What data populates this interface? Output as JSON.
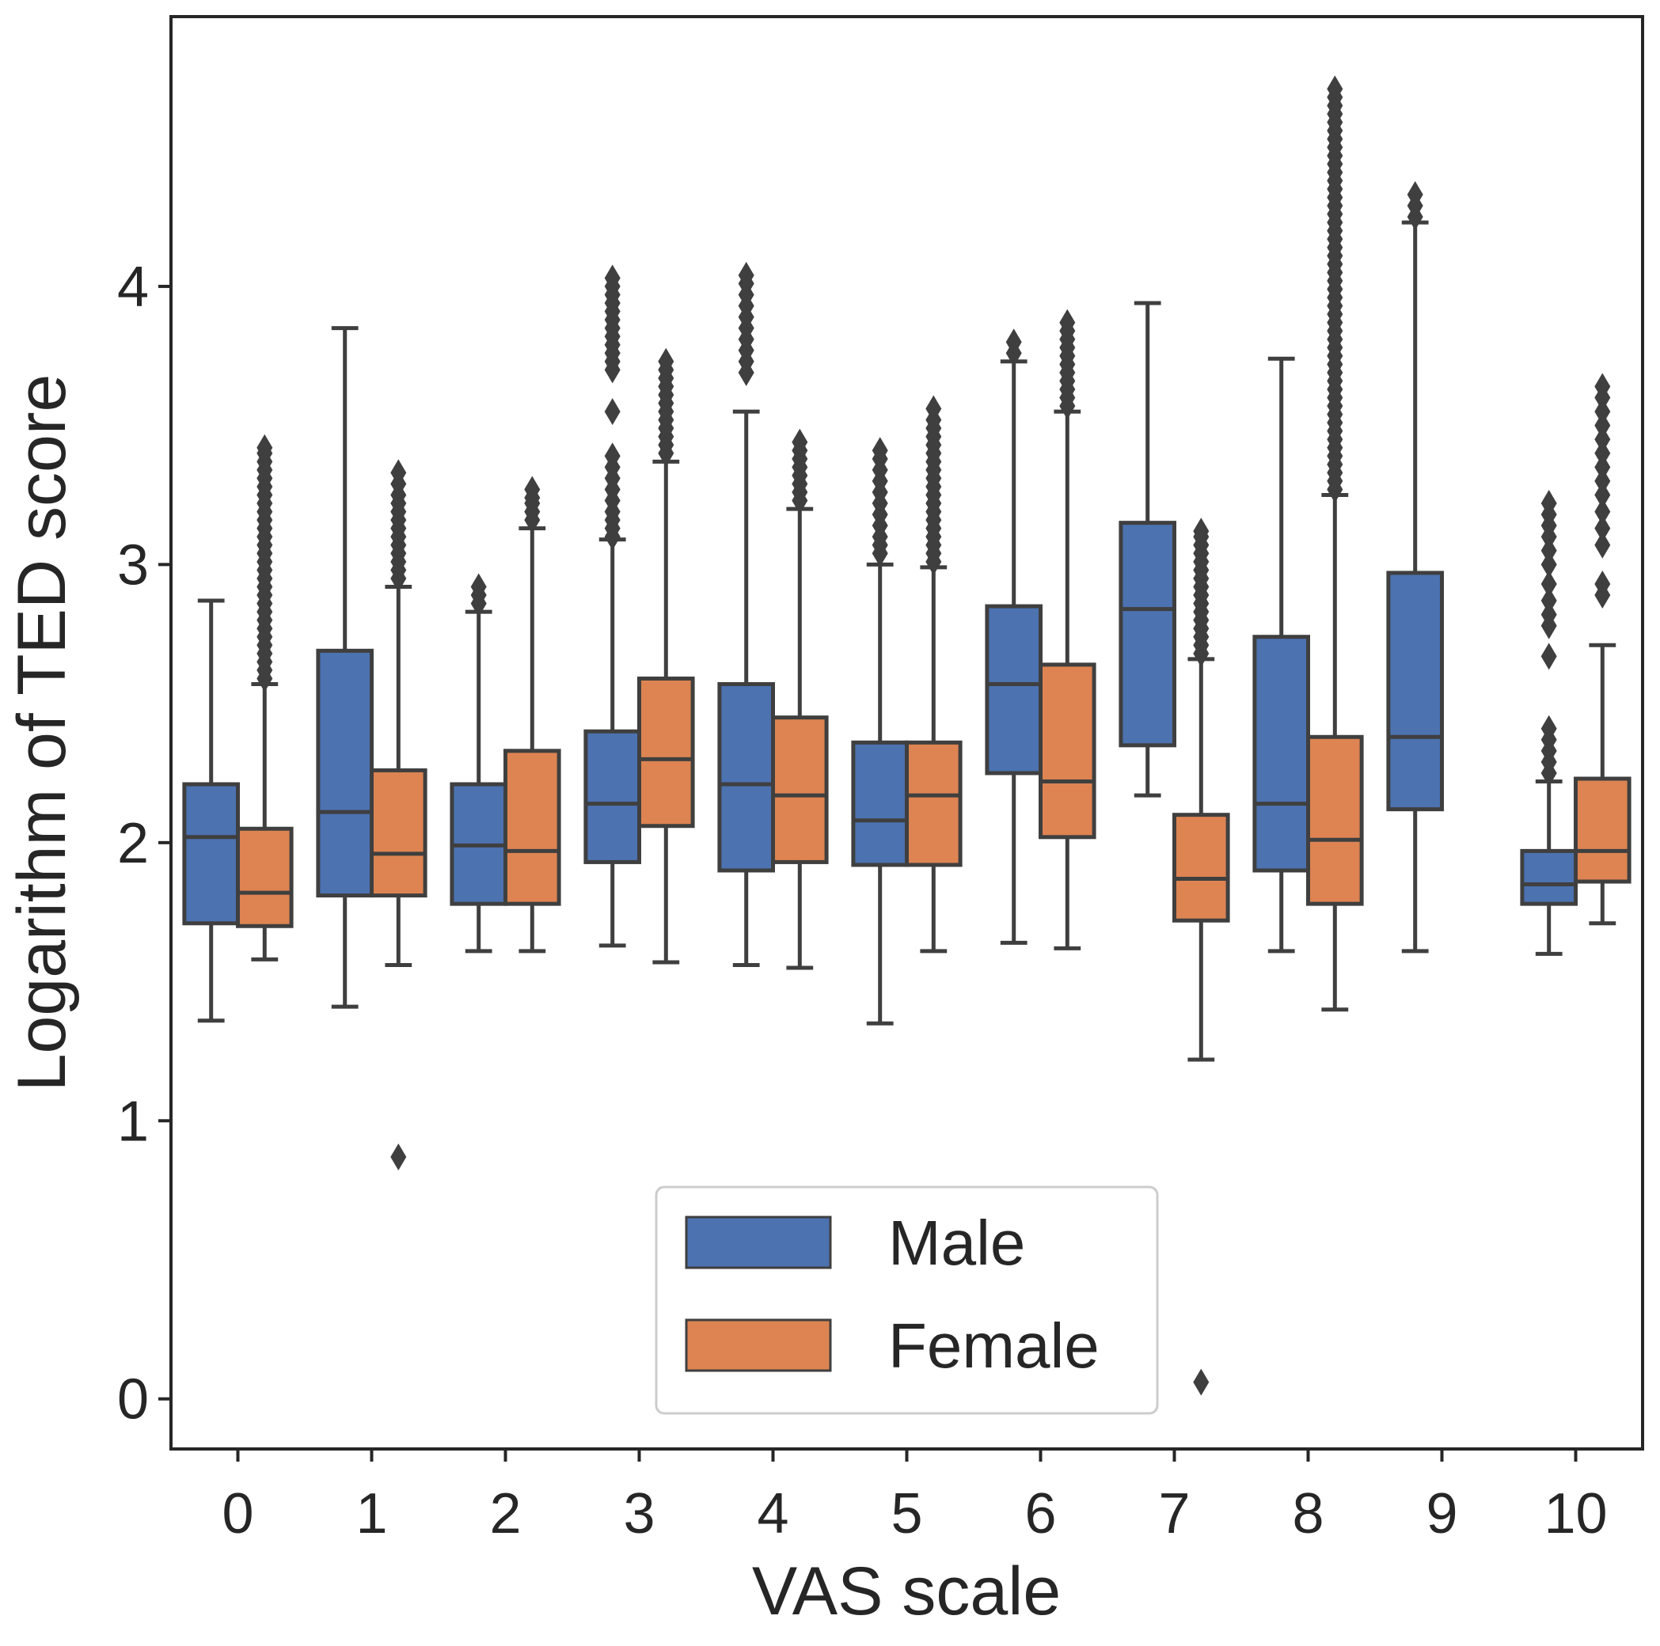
{
  "chart_data": {
    "type": "boxplot",
    "xlabel": "VAS scale",
    "ylabel": "Logarithm of TED score",
    "categories": [
      "0",
      "1",
      "2",
      "3",
      "4",
      "5",
      "6",
      "7",
      "8",
      "9",
      "10"
    ],
    "yticks": [
      {
        "value": 0,
        "label": "0"
      },
      {
        "value": 1,
        "label": "1"
      },
      {
        "value": 2,
        "label": "2"
      },
      {
        "value": 3,
        "label": "3"
      },
      {
        "value": 4,
        "label": "4"
      }
    ],
    "ylim": [
      -0.18,
      4.97
    ],
    "legend": {
      "position": "bottom-center"
    },
    "colors": {
      "Male": "#4c72b0",
      "Female": "#dd8452",
      "line": "#3f3f3f",
      "axis": "#262626"
    },
    "series": [
      {
        "name": "Male",
        "color": "#4c72b0",
        "boxes": [
          {
            "whislo": 1.36,
            "q1": 1.71,
            "med": 2.02,
            "q3": 2.21,
            "whishi": 2.87,
            "fliers": []
          },
          {
            "whislo": 1.41,
            "q1": 1.81,
            "med": 2.11,
            "q3": 2.69,
            "whishi": 3.85,
            "fliers": []
          },
          {
            "whislo": 1.61,
            "q1": 1.78,
            "med": 1.99,
            "q3": 2.21,
            "whishi": 2.83,
            "fliers": [
              2.86,
              2.89,
              2.92
            ]
          },
          {
            "whislo": 1.63,
            "q1": 1.93,
            "med": 2.14,
            "q3": 2.4,
            "whishi": 3.09,
            "fliers": [
              3.1,
              3.13,
              3.16,
              3.19,
              3.23,
              3.27,
              3.31,
              3.35,
              3.39,
              3.55,
              3.7,
              3.73,
              3.76,
              3.79,
              3.82,
              3.85,
              3.88,
              3.91,
              3.94,
              3.97,
              4.0,
              4.03
            ]
          },
          {
            "whislo": 1.56,
            "q1": 1.9,
            "med": 2.21,
            "q3": 2.57,
            "whishi": 3.55,
            "fliers": [
              3.69,
              3.73,
              3.77,
              3.81,
              3.85,
              3.89,
              3.93,
              3.97,
              4.01,
              4.04
            ]
          },
          {
            "whislo": 1.35,
            "q1": 1.92,
            "med": 2.08,
            "q3": 2.36,
            "whishi": 3.0,
            "fliers": [
              3.04,
              3.07,
              3.1,
              3.14,
              3.18,
              3.22,
              3.26,
              3.3,
              3.34,
              3.38,
              3.41
            ]
          },
          {
            "whislo": 1.64,
            "q1": 2.25,
            "med": 2.57,
            "q3": 2.85,
            "whishi": 3.73,
            "fliers": [
              3.76,
              3.8
            ]
          },
          {
            "whislo": 2.17,
            "q1": 2.35,
            "med": 2.84,
            "q3": 3.15,
            "whishi": 3.94,
            "fliers": []
          },
          {
            "whislo": 1.61,
            "q1": 1.9,
            "med": 2.14,
            "q3": 2.74,
            "whishi": 3.74,
            "fliers": []
          },
          {
            "whislo": 1.61,
            "q1": 2.12,
            "med": 2.38,
            "q3": 2.97,
            "whishi": 4.23,
            "fliers": [
              4.25,
              4.29,
              4.33
            ]
          },
          {
            "whislo": 1.6,
            "q1": 1.78,
            "med": 1.85,
            "q3": 1.97,
            "whishi": 2.22,
            "fliers": [
              2.25,
              2.29,
              2.33,
              2.37,
              2.41,
              2.67,
              2.78,
              2.82,
              2.87,
              2.93,
              3.0,
              3.05,
              3.1,
              3.14,
              3.18,
              3.22
            ]
          }
        ]
      },
      {
        "name": "Female",
        "color": "#dd8452",
        "boxes": [
          {
            "whislo": 1.58,
            "q1": 1.7,
            "med": 1.82,
            "q3": 2.05,
            "whishi": 2.57,
            "fliers": [
              2.59,
              2.62,
              2.65,
              2.68,
              2.71,
              2.74,
              2.77,
              2.8,
              2.83,
              2.86,
              2.89,
              2.92,
              2.95,
              2.98,
              3.01,
              3.04,
              3.07,
              3.1,
              3.13,
              3.16,
              3.19,
              3.22,
              3.25,
              3.28,
              3.31,
              3.34,
              3.37,
              3.4,
              3.42
            ]
          },
          {
            "whislo": 1.56,
            "q1": 1.81,
            "med": 1.96,
            "q3": 2.26,
            "whishi": 2.92,
            "fliers": [
              0.87,
              2.95,
              2.98,
              3.01,
              3.04,
              3.07,
              3.1,
              3.13,
              3.16,
              3.19,
              3.22,
              3.25,
              3.29,
              3.33
            ]
          },
          {
            "whislo": 1.61,
            "q1": 1.78,
            "med": 1.97,
            "q3": 2.33,
            "whishi": 3.13,
            "fliers": [
              3.16,
              3.19,
              3.22,
              3.24,
              3.27
            ]
          },
          {
            "whislo": 1.57,
            "q1": 2.06,
            "med": 2.3,
            "q3": 2.59,
            "whishi": 3.37,
            "fliers": [
              3.4,
              3.43,
              3.46,
              3.49,
              3.52,
              3.55,
              3.58,
              3.61,
              3.64,
              3.67,
              3.7,
              3.73
            ]
          },
          {
            "whislo": 1.55,
            "q1": 1.93,
            "med": 2.17,
            "q3": 2.45,
            "whishi": 3.2,
            "fliers": [
              3.23,
              3.26,
              3.29,
              3.32,
              3.35,
              3.38,
              3.41,
              3.44
            ]
          },
          {
            "whislo": 1.61,
            "q1": 1.92,
            "med": 2.17,
            "q3": 2.36,
            "whishi": 2.99,
            "fliers": [
              3.01,
              3.04,
              3.07,
              3.1,
              3.13,
              3.16,
              3.19,
              3.22,
              3.25,
              3.28,
              3.31,
              3.34,
              3.37,
              3.4,
              3.43,
              3.46,
              3.49,
              3.52,
              3.56
            ]
          },
          {
            "whislo": 1.62,
            "q1": 2.02,
            "med": 2.22,
            "q3": 2.64,
            "whishi": 3.55,
            "fliers": [
              3.57,
              3.6,
              3.63,
              3.66,
              3.69,
              3.72,
              3.75,
              3.78,
              3.81,
              3.84,
              3.87
            ]
          },
          {
            "whislo": 1.22,
            "q1": 1.72,
            "med": 1.87,
            "q3": 2.1,
            "whishi": 2.66,
            "fliers": [
              0.06,
              2.68,
              2.71,
              2.74,
              2.77,
              2.8,
              2.83,
              2.86,
              2.89,
              2.92,
              2.95,
              2.98,
              3.01,
              3.04,
              3.07,
              3.1,
              3.12
            ]
          },
          {
            "whislo": 1.4,
            "q1": 1.78,
            "med": 2.01,
            "q3": 2.38,
            "whishi": 3.25,
            "fliers": [
              3.27,
              3.3,
              3.33,
              3.36,
              3.39,
              3.42,
              3.45,
              3.48,
              3.51,
              3.54,
              3.57,
              3.6,
              3.63,
              3.66,
              3.69,
              3.72,
              3.75,
              3.78,
              3.81,
              3.84,
              3.87,
              3.9,
              3.93,
              3.96,
              3.99,
              4.02,
              4.05,
              4.08,
              4.11,
              4.14,
              4.17,
              4.2,
              4.23,
              4.26,
              4.29,
              4.32,
              4.35,
              4.38,
              4.41,
              4.44,
              4.47,
              4.5,
              4.53,
              4.56,
              4.59,
              4.62,
              4.65,
              4.68,
              4.71
            ]
          },
          null,
          {
            "whislo": 1.71,
            "q1": 1.86,
            "med": 1.97,
            "q3": 2.23,
            "whishi": 2.71,
            "fliers": [
              2.89,
              2.93,
              3.07,
              3.13,
              3.19,
              3.25,
              3.3,
              3.35,
              3.4,
              3.45,
              3.5,
              3.55,
              3.6,
              3.64
            ]
          }
        ]
      }
    ]
  }
}
